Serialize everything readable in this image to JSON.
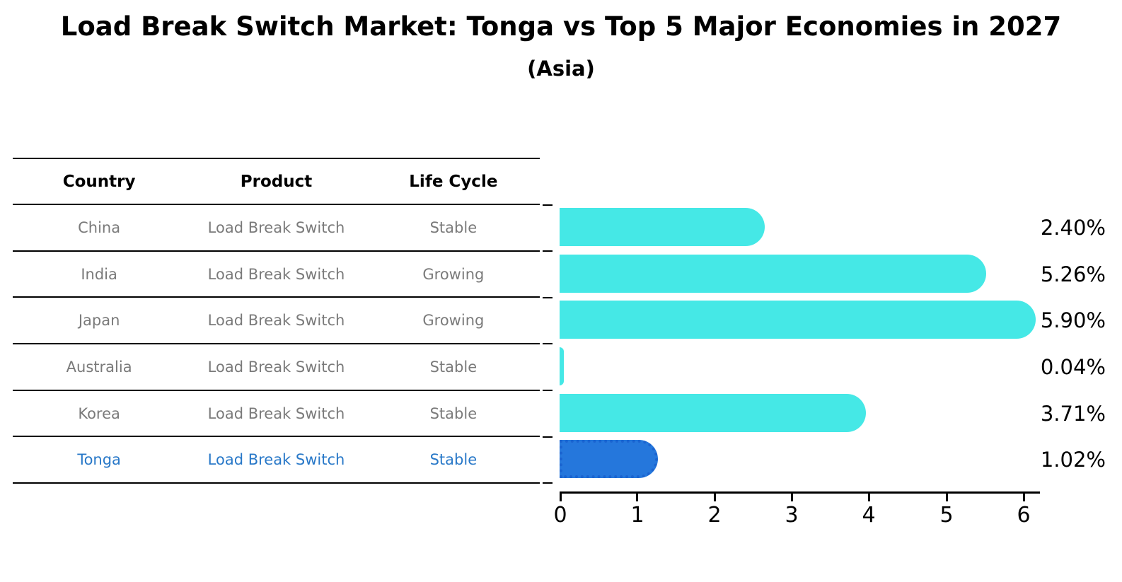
{
  "title": "Load Break Switch Market: Tonga vs Top 5 Major Economies in 2027",
  "subtitle": "(Asia)",
  "table": {
    "headers": [
      "Country",
      "Product",
      "Life Cycle"
    ],
    "rows": [
      {
        "country": "China",
        "product": "Load Break Switch",
        "life_cycle": "Stable"
      },
      {
        "country": "India",
        "product": "Load Break Switch",
        "life_cycle": "Growing"
      },
      {
        "country": "Japan",
        "product": "Load Break Switch",
        "life_cycle": "Growing"
      },
      {
        "country": "Australia",
        "product": "Load Break Switch",
        "life_cycle": "Stable"
      },
      {
        "country": "Korea",
        "product": "Load Break Switch",
        "life_cycle": "Stable"
      },
      {
        "country": "Tonga",
        "product": "Load Break Switch",
        "life_cycle": "Stable"
      }
    ]
  },
  "chart_data": {
    "type": "bar",
    "orientation": "horizontal",
    "title": "Load Break Switch Market: Tonga vs Top 5 Major Economies in 2027",
    "subtitle": "(Asia)",
    "categories": [
      "China",
      "India",
      "Japan",
      "Australia",
      "Korea",
      "Tonga"
    ],
    "values": [
      2.4,
      5.26,
      5.9,
      0.04,
      3.71,
      1.02
    ],
    "value_labels": [
      "2.40%",
      "5.26%",
      "5.90%",
      "0.04%",
      "3.71%",
      "1.02%"
    ],
    "x_ticks": [
      0,
      1,
      2,
      3,
      4,
      5,
      6
    ],
    "xlim": [
      0,
      6.2
    ],
    "grid": false,
    "legend": false,
    "bar_color": "#45e8e6",
    "highlight_index": 5,
    "highlight_color": "#2577dc",
    "highlight_border_color": "#1b64d0",
    "highlight_text_color": "#2878c8"
  }
}
